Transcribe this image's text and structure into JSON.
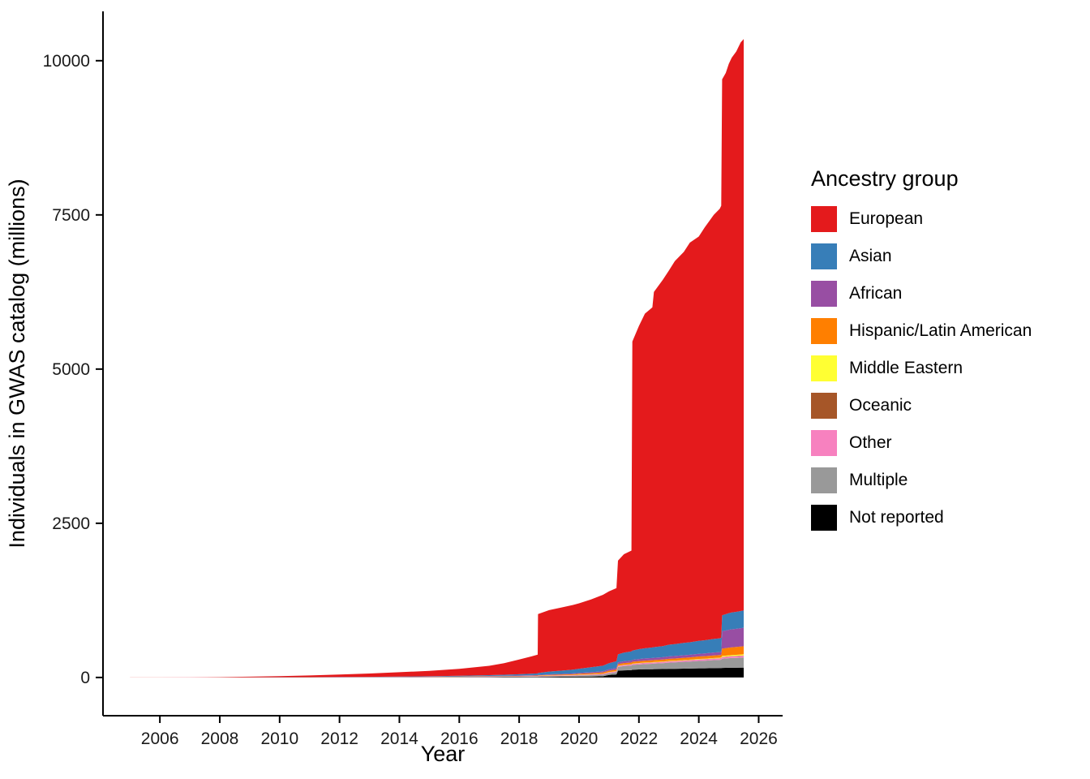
{
  "chart_data": {
    "type": "area",
    "stacked": true,
    "title": "",
    "xlabel": "Year",
    "ylabel": "Individuals in GWAS catalog (millions)",
    "legend": {
      "title": "Ancestry group",
      "position": "right"
    },
    "xticks": [
      2006,
      2008,
      2010,
      2012,
      2014,
      2016,
      2018,
      2020,
      2022,
      2024,
      2026
    ],
    "yticks": [
      0,
      2500,
      5000,
      7500,
      10000
    ],
    "xlim_display": [
      2004.1,
      2026.8
    ],
    "ylim_display": [
      -620,
      10800
    ],
    "grid": false,
    "x": [
      2005,
      2006,
      2007,
      2008,
      2009,
      2010,
      2011,
      2012,
      2013,
      2014,
      2015,
      2016,
      2017,
      2017.5,
      2018,
      2018.4,
      2018.62,
      2018.63,
      2019,
      2019.4,
      2019.8,
      2020,
      2020.4,
      2020.8,
      2021,
      2021.25,
      2021.3,
      2021.5,
      2021.75,
      2021.78,
      2022,
      2022.2,
      2022.45,
      2022.5,
      2022.8,
      2023,
      2023.2,
      2023.5,
      2023.7,
      2024,
      2024.2,
      2024.5,
      2024.7,
      2024.75,
      2024.78,
      2024.9,
      2025,
      2025.1,
      2025.25,
      2025.4,
      2025.5
    ],
    "series": [
      {
        "name": "European",
        "color": "#e41a1c",
        "values": [
          0.5,
          1,
          2.5,
          5,
          10,
          18,
          27,
          40,
          54,
          71,
          87,
          112,
          152,
          188,
          238,
          280,
          306,
          956,
          995,
          1022,
          1050,
          1060,
          1100,
          1150,
          1165,
          1185,
          1520,
          1595,
          1635,
          5010,
          5240,
          5425,
          5515,
          5760,
          5940,
          6065,
          6210,
          6340,
          6480,
          6555,
          6695,
          6875,
          6965,
          7005,
          8690,
          8775,
          8905,
          8995,
          9085,
          9220,
          9265
        ]
      },
      {
        "name": "Asian",
        "color": "#377eb8",
        "values": [
          0,
          0,
          0.2,
          0.5,
          0.8,
          1,
          1.5,
          2,
          3,
          4,
          6,
          9,
          13,
          16,
          20,
          24,
          26,
          30,
          45,
          52,
          60,
          68,
          80,
          90,
          100,
          110,
          130,
          140,
          148,
          150,
          160,
          165,
          170,
          172,
          180,
          190,
          193,
          200,
          203,
          210,
          213,
          220,
          223,
          225,
          260,
          265,
          270,
          272,
          275,
          278,
          280
        ]
      },
      {
        "name": "African",
        "color": "#984ea3",
        "values": [
          0,
          0,
          0.1,
          0.2,
          0.3,
          0.5,
          0.8,
          1,
          1.5,
          2,
          3,
          4,
          5,
          6,
          7,
          8,
          8.5,
          9,
          10,
          11,
          13,
          14,
          16,
          18,
          22,
          24,
          27,
          29,
          31,
          32,
          34,
          35,
          36,
          36,
          37,
          39,
          40,
          41,
          42,
          44,
          45,
          47,
          48,
          50,
          280,
          285,
          290,
          292,
          295,
          298,
          300
        ]
      },
      {
        "name": "Hispanic/Latin American",
        "color": "#ff7f00",
        "values": [
          0,
          0,
          0.1,
          0.2,
          0.3,
          0.4,
          0.6,
          0.8,
          1,
          1.5,
          2,
          3,
          4,
          4.5,
          5,
          6,
          6.5,
          7,
          9,
          11,
          13,
          15,
          17,
          20,
          23,
          25,
          26,
          27,
          28,
          29,
          30,
          31,
          32,
          32,
          33,
          34,
          35,
          36,
          37,
          39,
          40,
          42,
          43,
          45,
          120,
          122,
          124,
          126,
          127,
          129,
          130
        ]
      },
      {
        "name": "Middle Eastern",
        "color": "#ffff33",
        "values": [
          0,
          0,
          0,
          0,
          0,
          0.1,
          0.1,
          0.1,
          0.2,
          0.2,
          0.3,
          0.5,
          0.8,
          1,
          1.2,
          1.4,
          1.5,
          1.6,
          2,
          2.2,
          2.5,
          2.8,
          3,
          3.2,
          3.5,
          3.7,
          4,
          4.2,
          4.4,
          4.5,
          5,
          5.1,
          5.2,
          5.3,
          5.5,
          6,
          6.2,
          6.5,
          7,
          8,
          8.2,
          8.5,
          8.8,
          9,
          15,
          15.5,
          16,
          16.5,
          17,
          17.5,
          18
        ]
      },
      {
        "name": "Oceanic",
        "color": "#a65628",
        "values": [
          0,
          0,
          0,
          0,
          0,
          0.1,
          0.1,
          0.1,
          0.2,
          0.2,
          0.3,
          0.4,
          0.5,
          0.6,
          0.8,
          0.9,
          1,
          1,
          1.2,
          1.3,
          1.4,
          1.5,
          1.6,
          1.8,
          2,
          2,
          2,
          2.1,
          2.1,
          2.2,
          2.2,
          2.3,
          2.3,
          2.4,
          2.5,
          2.8,
          2.8,
          2.9,
          3,
          3,
          3.1,
          3.2,
          3.2,
          3.3,
          4,
          4,
          4.2,
          4.5,
          4.8,
          5,
          5
        ]
      },
      {
        "name": "Other",
        "color": "#f781bf",
        "values": [
          0,
          0.1,
          0.2,
          0.3,
          0.5,
          0.7,
          0.9,
          1.2,
          1.5,
          2,
          2.5,
          3,
          4,
          4.5,
          5,
          5.5,
          5.8,
          6,
          7,
          7.5,
          8,
          9,
          10,
          11,
          12,
          13,
          15,
          15.5,
          16,
          16,
          18,
          18.2,
          18.5,
          18.5,
          19,
          20,
          20.2,
          20.5,
          21,
          22,
          22.2,
          23,
          23.5,
          24,
          25,
          25.5,
          26,
          26.5,
          27,
          27.5,
          28
        ]
      },
      {
        "name": "Multiple",
        "color": "#999999",
        "values": [
          0,
          0,
          0.1,
          0.2,
          0.3,
          0.4,
          0.6,
          1,
          1.5,
          2,
          3,
          4,
          6,
          7,
          8,
          9,
          9.5,
          10,
          12,
          14,
          16,
          18,
          22,
          26,
          30,
          35,
          60,
          70,
          75,
          78,
          80,
          85,
          88,
          90,
          95,
          100,
          103,
          110,
          113,
          120,
          123,
          130,
          133,
          135,
          150,
          153,
          156,
          158,
          160,
          163,
          165
        ]
      },
      {
        "name": "Not reported",
        "color": "#000000",
        "values": [
          0,
          0,
          0.1,
          0.2,
          0.4,
          0.6,
          0.8,
          1,
          1.5,
          2,
          2.5,
          3,
          4,
          4.5,
          5,
          6,
          6.5,
          7,
          10,
          11,
          12,
          14,
          16,
          20,
          40,
          50,
          110,
          115,
          118,
          125,
          130,
          132,
          134,
          135,
          137,
          140,
          141,
          143,
          145,
          148,
          149,
          151,
          152,
          153,
          155,
          156,
          157,
          158,
          158,
          159,
          160
        ]
      }
    ]
  }
}
